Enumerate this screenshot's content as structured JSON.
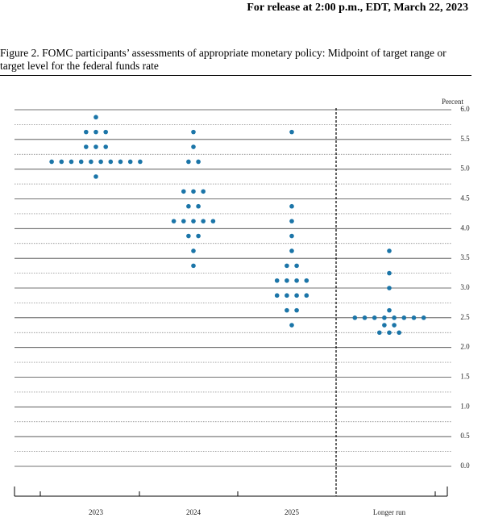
{
  "header": {
    "release": "For release at 2:00 p.m., EDT, March 22, 2023",
    "caption": "Figure 2.  FOMC participants’ assessments of appropriate monetary policy:  Midpoint of target range or target level for the federal funds rate"
  },
  "chart_data": {
    "type": "dot",
    "y_label": "Percent",
    "color": "#1b75a8",
    "ylim": [
      0,
      6
    ],
    "yticks": [
      {
        "value": 0,
        "label": "0.0"
      },
      {
        "value": 0.5,
        "label": "0.5"
      },
      {
        "value": 1,
        "label": "1.0"
      },
      {
        "value": 1.5,
        "label": "1.5"
      },
      {
        "value": 2,
        "label": "2.0"
      },
      {
        "value": 2.5,
        "label": "2.5"
      },
      {
        "value": 3,
        "label": "3.0"
      },
      {
        "value": 3.5,
        "label": "3.5"
      },
      {
        "value": 4,
        "label": "4.0"
      },
      {
        "value": 4.5,
        "label": "4.5"
      },
      {
        "value": 5,
        "label": "5.0"
      },
      {
        "value": 5.5,
        "label": "5.5"
      },
      {
        "value": 6,
        "label": "6.0"
      }
    ],
    "minor_gridlines": [
      0.25,
      0.75,
      1.25,
      1.75,
      2.25,
      2.75,
      3.25,
      3.75,
      4.25,
      4.75,
      5.25,
      5.75
    ],
    "categories": [
      "2023",
      "2024",
      "2025",
      "Longer run"
    ],
    "dots": [
      [
        {
          "rate": 5.875,
          "count": 1
        },
        {
          "rate": 5.625,
          "count": 3
        },
        {
          "rate": 5.375,
          "count": 3
        },
        {
          "rate": 5.125,
          "count": 10
        },
        {
          "rate": 4.875,
          "count": 1
        }
      ],
      [
        {
          "rate": 5.625,
          "count": 1
        },
        {
          "rate": 5.375,
          "count": 1
        },
        {
          "rate": 5.125,
          "count": 2
        },
        {
          "rate": 4.625,
          "count": 3
        },
        {
          "rate": 4.375,
          "count": 2
        },
        {
          "rate": 4.125,
          "count": 5
        },
        {
          "rate": 3.875,
          "count": 2
        },
        {
          "rate": 3.625,
          "count": 1
        },
        {
          "rate": 3.375,
          "count": 1
        }
      ],
      [
        {
          "rate": 5.625,
          "count": 1
        },
        {
          "rate": 4.375,
          "count": 1
        },
        {
          "rate": 4.125,
          "count": 1
        },
        {
          "rate": 3.875,
          "count": 1
        },
        {
          "rate": 3.625,
          "count": 1
        },
        {
          "rate": 3.375,
          "count": 2
        },
        {
          "rate": 3.125,
          "count": 4
        },
        {
          "rate": 2.875,
          "count": 4
        },
        {
          "rate": 2.625,
          "count": 2
        },
        {
          "rate": 2.375,
          "count": 1
        }
      ],
      [
        {
          "rate": 3.625,
          "count": 1
        },
        {
          "rate": 3.25,
          "count": 1
        },
        {
          "rate": 3.0,
          "count": 1
        },
        {
          "rate": 2.625,
          "count": 1
        },
        {
          "rate": 2.5,
          "count": 8
        },
        {
          "rate": 2.375,
          "count": 2
        },
        {
          "rate": 2.25,
          "count": 3
        }
      ]
    ]
  }
}
